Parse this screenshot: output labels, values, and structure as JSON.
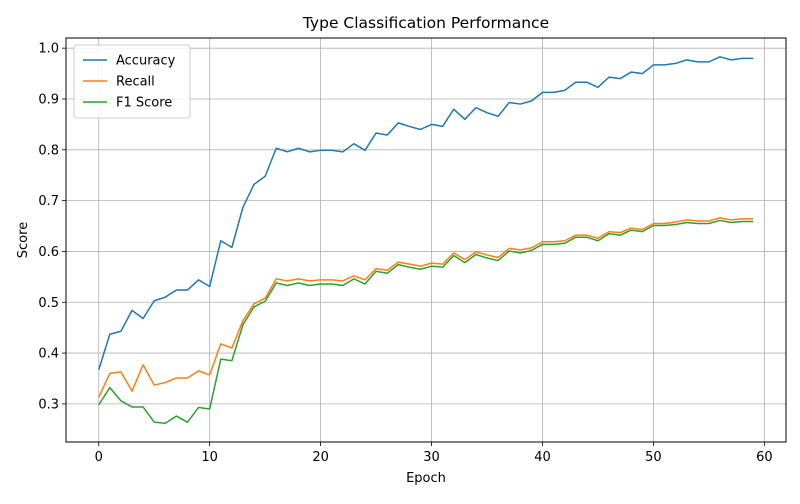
{
  "chart_data": {
    "type": "line",
    "title": "Type Classification Performance",
    "xlabel": "Epoch",
    "ylabel": "Score",
    "xlim": [
      -2.95,
      61.95
    ],
    "ylim": [
      0.225,
      1.02
    ],
    "xticks": [
      0,
      10,
      20,
      30,
      40,
      50,
      60
    ],
    "yticks": [
      0.3,
      0.4,
      0.5,
      0.6,
      0.7,
      0.8,
      0.9,
      1.0
    ],
    "xtick_labels": [
      "0",
      "10",
      "20",
      "30",
      "40",
      "50",
      "60"
    ],
    "ytick_labels": [
      "0.3",
      "0.4",
      "0.5",
      "0.6",
      "0.7",
      "0.8",
      "0.9",
      "1.0"
    ],
    "grid": true,
    "legend_position": "top-left",
    "x": [
      0,
      1,
      2,
      3,
      4,
      5,
      6,
      7,
      8,
      9,
      10,
      11,
      12,
      13,
      14,
      15,
      16,
      17,
      18,
      19,
      20,
      21,
      22,
      23,
      24,
      25,
      26,
      27,
      28,
      29,
      30,
      31,
      32,
      33,
      34,
      35,
      36,
      37,
      38,
      39,
      40,
      41,
      42,
      43,
      44,
      45,
      46,
      47,
      48,
      49,
      50,
      51,
      52,
      53,
      54,
      55,
      56,
      57,
      58,
      59
    ],
    "series": [
      {
        "name": "Accuracy",
        "color": "#1f77b4",
        "values": [
          0.367,
          0.437,
          0.443,
          0.484,
          0.468,
          0.503,
          0.51,
          0.524,
          0.524,
          0.544,
          0.531,
          0.621,
          0.608,
          0.687,
          0.732,
          0.748,
          0.803,
          0.796,
          0.803,
          0.796,
          0.799,
          0.799,
          0.796,
          0.812,
          0.799,
          0.833,
          0.829,
          0.853,
          0.846,
          0.84,
          0.85,
          0.846,
          0.88,
          0.86,
          0.883,
          0.873,
          0.866,
          0.893,
          0.89,
          0.896,
          0.913,
          0.913,
          0.917,
          0.933,
          0.933,
          0.923,
          0.943,
          0.94,
          0.953,
          0.95,
          0.967,
          0.967,
          0.97,
          0.977,
          0.973,
          0.973,
          0.983,
          0.977,
          0.98,
          0.98
        ]
      },
      {
        "name": "Recall",
        "color": "#ff7f0e",
        "values": [
          0.313,
          0.36,
          0.363,
          0.325,
          0.377,
          0.337,
          0.342,
          0.351,
          0.351,
          0.365,
          0.357,
          0.418,
          0.41,
          0.464,
          0.497,
          0.508,
          0.546,
          0.542,
          0.546,
          0.542,
          0.544,
          0.544,
          0.542,
          0.552,
          0.544,
          0.566,
          0.563,
          0.579,
          0.575,
          0.571,
          0.577,
          0.575,
          0.597,
          0.584,
          0.599,
          0.593,
          0.588,
          0.606,
          0.603,
          0.607,
          0.619,
          0.619,
          0.621,
          0.632,
          0.632,
          0.626,
          0.639,
          0.637,
          0.646,
          0.643,
          0.655,
          0.655,
          0.658,
          0.662,
          0.66,
          0.66,
          0.666,
          0.662,
          0.664,
          0.664
        ]
      },
      {
        "name": "F1 Score",
        "color": "#2ca02c",
        "values": [
          0.298,
          0.332,
          0.306,
          0.294,
          0.294,
          0.264,
          0.262,
          0.276,
          0.264,
          0.293,
          0.29,
          0.388,
          0.385,
          0.456,
          0.491,
          0.502,
          0.538,
          0.533,
          0.538,
          0.533,
          0.536,
          0.536,
          0.533,
          0.546,
          0.536,
          0.561,
          0.557,
          0.574,
          0.569,
          0.565,
          0.571,
          0.569,
          0.592,
          0.578,
          0.594,
          0.587,
          0.582,
          0.601,
          0.597,
          0.602,
          0.614,
          0.614,
          0.616,
          0.628,
          0.628,
          0.621,
          0.635,
          0.632,
          0.642,
          0.639,
          0.651,
          0.651,
          0.653,
          0.657,
          0.655,
          0.655,
          0.661,
          0.657,
          0.659,
          0.659
        ]
      }
    ]
  }
}
